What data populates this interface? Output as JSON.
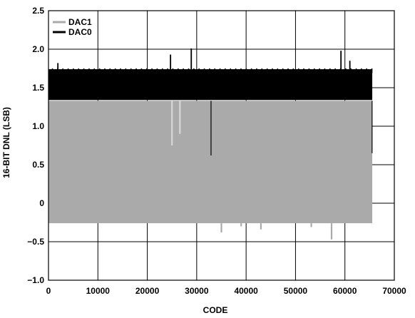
{
  "chart_data": {
    "type": "area",
    "title": "",
    "xlabel": "CODE",
    "ylabel": "16-BIT DNL (LSB)",
    "xlim": [
      0,
      70000
    ],
    "ylim": [
      -1.0,
      2.5
    ],
    "x_ticks": [
      0,
      10000,
      20000,
      30000,
      40000,
      50000,
      60000,
      70000
    ],
    "x_tick_labels": [
      "0",
      "10000",
      "20000",
      "30000",
      "40000",
      "50000",
      "60000",
      "70000"
    ],
    "y_ticks": [
      -1.0,
      -0.5,
      0,
      0.5,
      1.0,
      1.5,
      2.0,
      2.5
    ],
    "y_tick_labels": [
      "−1.0",
      "−0.5",
      "0",
      "0.5",
      "1.0",
      "1.5",
      "2.0",
      "2.5"
    ],
    "grid": true,
    "legend_position": "top-left",
    "series": [
      {
        "name": "DAC1",
        "color": "#aaaaaa",
        "x_range": [
          0,
          65535
        ],
        "band_min": -0.26,
        "band_max": 1.33,
        "spikes": [
          {
            "x": 25000,
            "y": 0.75
          },
          {
            "x": 26600,
            "y": 0.9
          },
          {
            "x": 35000,
            "y": -0.38
          },
          {
            "x": 39000,
            "y": -0.3
          },
          {
            "x": 43000,
            "y": -0.34
          },
          {
            "x": 53200,
            "y": -0.31
          },
          {
            "x": 57300,
            "y": -0.47
          }
        ]
      },
      {
        "name": "DAC0",
        "color": "#000000",
        "x_range": [
          0,
          65535
        ],
        "band_min": 1.34,
        "band_max": 1.74,
        "spikes": [
          {
            "x": 1900,
            "y": 1.82
          },
          {
            "x": 24700,
            "y": 1.93
          },
          {
            "x": 28900,
            "y": 2.01
          },
          {
            "x": 59200,
            "y": 1.98
          },
          {
            "x": 61000,
            "y": 1.85
          },
          {
            "x": 32900,
            "y": 0.62
          },
          {
            "x": 65500,
            "y": 0.65
          }
        ]
      }
    ]
  }
}
